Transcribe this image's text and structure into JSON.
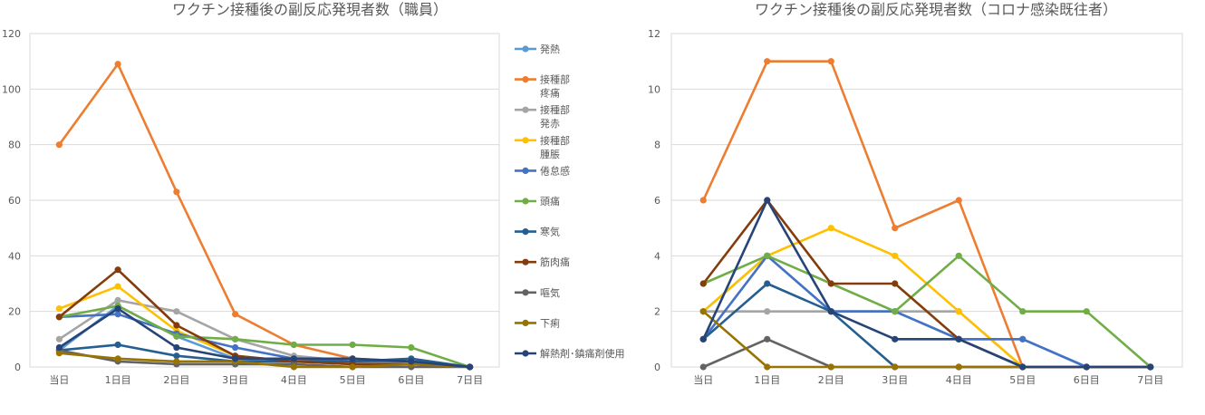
{
  "chart_data": [
    {
      "type": "line",
      "title": "ワクチン接種後の副反応発現者数（職員）",
      "categories": [
        "当日",
        "1日目",
        "2日目",
        "3日目",
        "4日目",
        "5日目",
        "6日目",
        "7日目"
      ],
      "ylim": [
        0,
        120
      ],
      "yticks": [
        0,
        20,
        40,
        60,
        80,
        100,
        120
      ],
      "grid": true,
      "legend": "right",
      "series": [
        {
          "name": "発熱",
          "legend_lines": [
            "発熱"
          ],
          "color": "#5B9BD5",
          "values": [
            6,
            22,
            11,
            3,
            2,
            1,
            1,
            0
          ]
        },
        {
          "name": "接種部疼痛",
          "legend_lines": [
            "接種部",
            "疼痛"
          ],
          "color": "#ED7D31",
          "values": [
            80,
            109,
            63,
            19,
            8,
            3,
            2,
            0
          ]
        },
        {
          "name": "接種部発赤",
          "legend_lines": [
            "接種部",
            "発赤"
          ],
          "color": "#A5A5A5",
          "values": [
            10,
            24,
            20,
            10,
            4,
            2,
            1,
            0
          ]
        },
        {
          "name": "接種部腫脹",
          "legend_lines": [
            "接種部",
            "腫脹"
          ],
          "color": "#FFC000",
          "values": [
            21,
            29,
            13,
            4,
            2,
            1,
            1,
            0
          ]
        },
        {
          "name": "倦怠感",
          "legend_lines": [
            "倦怠感"
          ],
          "color": "#4472C4",
          "values": [
            18,
            19,
            12,
            7,
            3,
            2,
            2,
            0
          ]
        },
        {
          "name": "頭痛",
          "legend_lines": [
            "頭痛"
          ],
          "color": "#70AD47",
          "values": [
            18,
            22,
            11,
            10,
            8,
            8,
            7,
            0
          ]
        },
        {
          "name": "寒気",
          "legend_lines": [
            "寒気"
          ],
          "color": "#255E91",
          "values": [
            6,
            8,
            4,
            2,
            2,
            2,
            3,
            0
          ]
        },
        {
          "name": "筋肉痛",
          "legend_lines": [
            "筋肉痛"
          ],
          "color": "#843C0C",
          "values": [
            18,
            35,
            15,
            4,
            2,
            1,
            1,
            0
          ]
        },
        {
          "name": "嘔気",
          "legend_lines": [
            "嘔気"
          ],
          "color": "#636363",
          "values": [
            6,
            2,
            1,
            1,
            1,
            0,
            0,
            0
          ]
        },
        {
          "name": "下痢",
          "legend_lines": [
            "下痢"
          ],
          "color": "#997300",
          "values": [
            5,
            3,
            2,
            2,
            0,
            0,
            1,
            0
          ]
        },
        {
          "name": "解熱剤･鎮痛剤使用",
          "legend_lines": [
            "解熱剤･鎮痛剤使用"
          ],
          "color": "#264478",
          "values": [
            7,
            21,
            7,
            3,
            3,
            3,
            2,
            0
          ]
        }
      ]
    },
    {
      "type": "line",
      "title": "ワクチン接種後の副反応発現者数（コロナ感染既往者）",
      "categories": [
        "当日",
        "1日目",
        "2日目",
        "3日目",
        "4日目",
        "5日目",
        "6日目",
        "7日目"
      ],
      "ylim": [
        0,
        12
      ],
      "yticks": [
        0,
        2,
        4,
        6,
        8,
        10,
        12
      ],
      "grid": true,
      "legend": "none",
      "series": [
        {
          "color": "#5B9BD5",
          "values": [
            2,
            4,
            2,
            2,
            1,
            1,
            0,
            0
          ]
        },
        {
          "color": "#ED7D31",
          "values": [
            6,
            11,
            11,
            5,
            6,
            0,
            0,
            0
          ]
        },
        {
          "color": "#A5A5A5",
          "values": [
            2,
            2,
            2,
            2,
            2,
            0,
            0,
            0
          ]
        },
        {
          "color": "#FFC000",
          "values": [
            2,
            4,
            5,
            4,
            2,
            0,
            0,
            0
          ]
        },
        {
          "color": "#4472C4",
          "values": [
            1,
            4,
            2,
            2,
            1,
            1,
            0,
            0
          ]
        },
        {
          "color": "#70AD47",
          "values": [
            3,
            4,
            3,
            2,
            4,
            2,
            2,
            0
          ]
        },
        {
          "color": "#255E91",
          "values": [
            1,
            3,
            2,
            0,
            0,
            0,
            0,
            0
          ]
        },
        {
          "color": "#843C0C",
          "values": [
            3,
            6,
            3,
            3,
            1,
            0,
            0,
            0
          ]
        },
        {
          "color": "#636363",
          "values": [
            0,
            1,
            0,
            0,
            0,
            0,
            0,
            0
          ]
        },
        {
          "color": "#997300",
          "values": [
            2,
            0,
            0,
            0,
            0,
            0,
            0,
            0
          ]
        },
        {
          "color": "#264478",
          "values": [
            1,
            6,
            2,
            1,
            1,
            0,
            0,
            0
          ]
        }
      ]
    }
  ]
}
